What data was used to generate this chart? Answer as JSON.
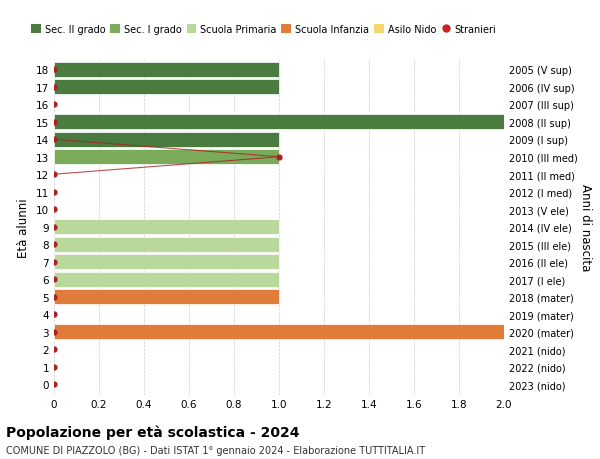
{
  "title": "Popolazione per età scolastica - 2024",
  "subtitle": "COMUNE DI PIAZZOLO (BG) - Dati ISTAT 1° gennaio 2024 - Elaborazione TUTTITALIA.IT",
  "ylabel_left": "Età alunni",
  "ylabel_right": "Anni di nascita",
  "xlim": [
    0,
    2.0
  ],
  "yticks": [
    0,
    1,
    2,
    3,
    4,
    5,
    6,
    7,
    8,
    9,
    10,
    11,
    12,
    13,
    14,
    15,
    16,
    17,
    18
  ],
  "right_labels": [
    "2023 (nido)",
    "2022 (nido)",
    "2021 (nido)",
    "2020 (mater)",
    "2019 (mater)",
    "2018 (mater)",
    "2017 (I ele)",
    "2016 (II ele)",
    "2015 (III ele)",
    "2014 (IV ele)",
    "2013 (V ele)",
    "2012 (I med)",
    "2011 (II med)",
    "2010 (III med)",
    "2009 (I sup)",
    "2008 (II sup)",
    "2007 (III sup)",
    "2006 (IV sup)",
    "2005 (V sup)"
  ],
  "bars": [
    {
      "y": 18,
      "value": 1.0,
      "color": "#4a7c3f"
    },
    {
      "y": 17,
      "value": 1.0,
      "color": "#4a7c3f"
    },
    {
      "y": 16,
      "value": 0.0,
      "color": "#4a7c3f"
    },
    {
      "y": 15,
      "value": 2.0,
      "color": "#4a7c3f"
    },
    {
      "y": 14,
      "value": 1.0,
      "color": "#4a7c3f"
    },
    {
      "y": 13,
      "value": 1.0,
      "color": "#7aab5a"
    },
    {
      "y": 12,
      "value": 0.0,
      "color": "#7aab5a"
    },
    {
      "y": 11,
      "value": 0.0,
      "color": "#7aab5a"
    },
    {
      "y": 10,
      "value": 0.0,
      "color": "#b8d89c"
    },
    {
      "y": 9,
      "value": 1.0,
      "color": "#b8d89c"
    },
    {
      "y": 8,
      "value": 1.0,
      "color": "#b8d89c"
    },
    {
      "y": 7,
      "value": 1.0,
      "color": "#b8d89c"
    },
    {
      "y": 6,
      "value": 1.0,
      "color": "#b8d89c"
    },
    {
      "y": 5,
      "value": 1.0,
      "color": "#e07b39"
    },
    {
      "y": 4,
      "value": 0.0,
      "color": "#e07b39"
    },
    {
      "y": 3,
      "value": 2.0,
      "color": "#e07b39"
    },
    {
      "y": 2,
      "value": 0.0,
      "color": "#f5d76e"
    },
    {
      "y": 1,
      "value": 0.0,
      "color": "#f5d76e"
    },
    {
      "y": 0,
      "value": 0.0,
      "color": "#f5d76e"
    }
  ],
  "stranieri_line_y": [
    14,
    13,
    12
  ],
  "stranieri_line_x": [
    0,
    1.0,
    0
  ],
  "stranieri_dots_y": [
    0,
    1,
    2,
    3,
    4,
    5,
    6,
    7,
    8,
    9,
    10,
    11,
    12,
    13,
    14,
    15,
    16,
    17,
    18
  ],
  "stranieri_dots_x": [
    0,
    0,
    0,
    0,
    0,
    0,
    0,
    0,
    0,
    0,
    0,
    0,
    0,
    1.0,
    0,
    0,
    0,
    0,
    0
  ],
  "legend": [
    {
      "label": "Sec. II grado",
      "color": "#4a7c3f",
      "type": "patch"
    },
    {
      "label": "Sec. I grado",
      "color": "#7aab5a",
      "type": "patch"
    },
    {
      "label": "Scuola Primaria",
      "color": "#b8d89c",
      "type": "patch"
    },
    {
      "label": "Scuola Infanzia",
      "color": "#e07b39",
      "type": "patch"
    },
    {
      "label": "Asilo Nido",
      "color": "#f5d76e",
      "type": "patch"
    },
    {
      "label": "Stranieri",
      "color": "#cc2222",
      "type": "dot"
    }
  ],
  "bar_height": 0.85,
  "background_color": "#ffffff",
  "grid_color": "#cccccc",
  "stranieri_color": "#aa2222"
}
